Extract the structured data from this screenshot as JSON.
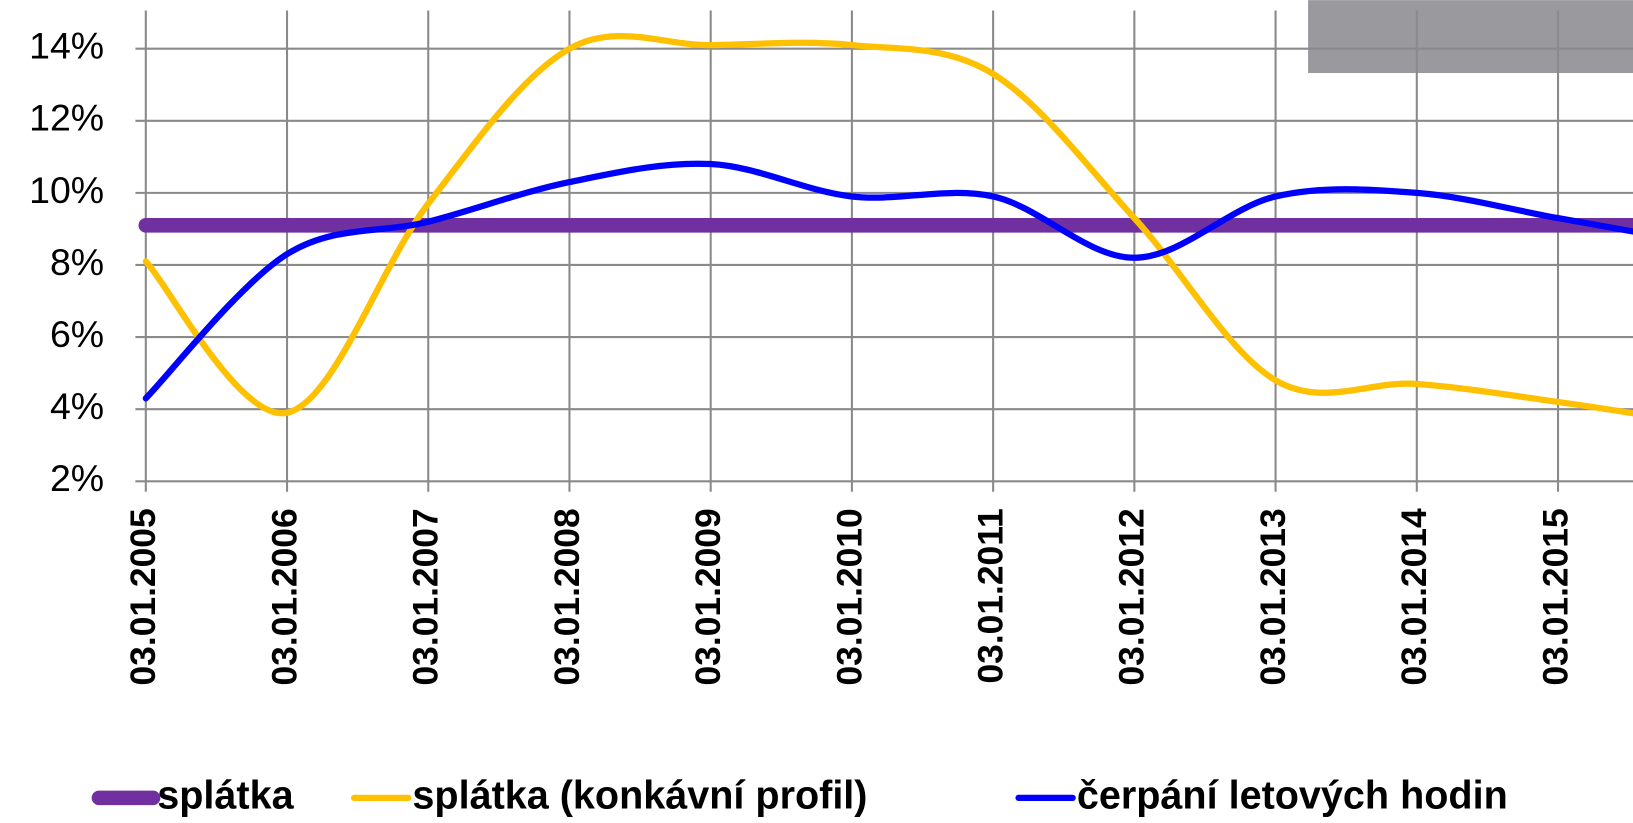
{
  "chart_data": {
    "type": "line",
    "categories": [
      "03.01.2005",
      "03.01.2006",
      "03.01.2007",
      "03.01.2008",
      "03.01.2009",
      "03.01.2010",
      "03.01.2011",
      "03.01.2012",
      "03.01.2013",
      "03.01.2014",
      "03.01.2015",
      null
    ],
    "series": [
      {
        "name": "splátka",
        "color": "#7030a0",
        "values": [
          9.1,
          9.1,
          9.1,
          9.1,
          9.1,
          9.1,
          9.1,
          9.1,
          9.1,
          9.1,
          9.1,
          9.1
        ]
      },
      {
        "name": "splátka (konkávní profil)",
        "color": "#ffc000",
        "values": [
          8.1,
          3.9,
          9.7,
          14.0,
          14.1,
          14.1,
          13.3,
          9.3,
          4.8,
          4.7,
          4.2,
          3.6
        ]
      },
      {
        "name": "čerpání letových hodin",
        "color": "#0000ff",
        "values": [
          4.3,
          8.3,
          9.2,
          10.3,
          10.8,
          9.9,
          9.9,
          8.2,
          9.9,
          10.0,
          9.3,
          8.6
        ]
      }
    ],
    "ylim": [
      2,
      15
    ],
    "yticks": [
      {
        "value": 2,
        "label": "2%"
      },
      {
        "value": 4,
        "label": "4%"
      },
      {
        "value": 6,
        "label": "6%"
      },
      {
        "value": 8,
        "label": "8%"
      },
      {
        "value": 10,
        "label": "10%"
      },
      {
        "value": 12,
        "label": "12%"
      },
      {
        "value": 14,
        "label": "14%"
      }
    ],
    "grid": true
  }
}
